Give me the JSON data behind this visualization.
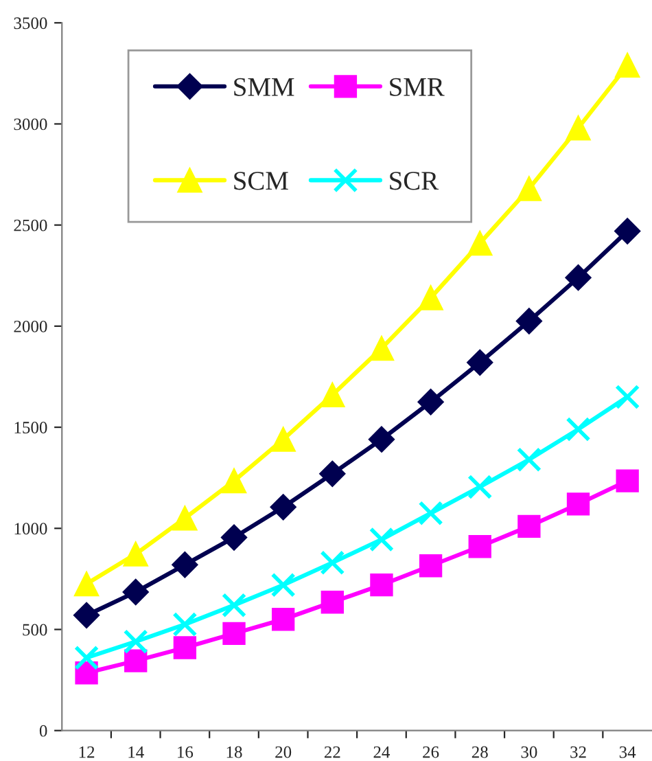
{
  "chart_data": {
    "type": "line",
    "categories": [
      "12",
      "14",
      "16",
      "18",
      "20",
      "22",
      "24",
      "26",
      "28",
      "30",
      "32",
      "34"
    ],
    "series": [
      {
        "name": "SMM",
        "color": "#000050",
        "marker": "diamond",
        "values": [
          570,
          685,
          820,
          955,
          1105,
          1270,
          1440,
          1625,
          1820,
          2025,
          2240,
          2470
        ]
      },
      {
        "name": "SMR",
        "color": "#ff00ff",
        "marker": "square",
        "values": [
          285,
          345,
          410,
          480,
          550,
          635,
          720,
          815,
          910,
          1010,
          1120,
          1235
        ]
      },
      {
        "name": "SCM",
        "color": "#ffff00",
        "marker": "triangle",
        "values": [
          725,
          873,
          1050,
          1235,
          1440,
          1660,
          1890,
          2140,
          2410,
          2680,
          2980,
          3290
        ]
      },
      {
        "name": "SCR",
        "color": "#00ffff",
        "marker": "cross",
        "values": [
          360,
          440,
          525,
          620,
          720,
          830,
          945,
          1075,
          1205,
          1340,
          1490,
          1650
        ]
      }
    ],
    "ylim": [
      0,
      3500
    ],
    "yticks": [
      0,
      500,
      1000,
      1500,
      2000,
      2500,
      3000,
      3500
    ],
    "grid": false,
    "legend": "top left",
    "line_style": "solid"
  }
}
